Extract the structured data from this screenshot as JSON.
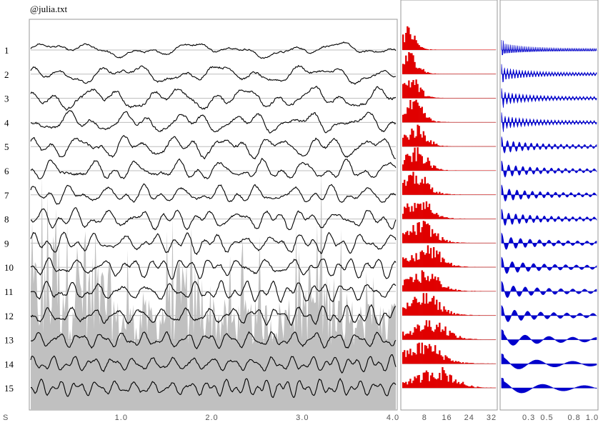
{
  "title": "@julia.txt",
  "chart_data": [
    {
      "type": "line",
      "name": "time-traces",
      "channels": [
        "1",
        "2",
        "3",
        "4",
        "5",
        "6",
        "7",
        "8",
        "9",
        "10",
        "11",
        "12",
        "13",
        "14",
        "15"
      ],
      "x_unit_label": "S",
      "x_ticks": [
        "1.0",
        "2.0",
        "3.0",
        "4.0"
      ],
      "xlim": [
        0,
        4.0
      ],
      "trace_amplitude": [
        0.35,
        0.45,
        0.55,
        0.5,
        0.55,
        0.5,
        0.45,
        0.5,
        0.5,
        0.5,
        0.5,
        0.5,
        0.5,
        0.45,
        0.45
      ]
    },
    {
      "type": "bar",
      "name": "spectra",
      "color": "#e00000",
      "x_ticks": [
        "8",
        "16",
        "24",
        "32"
      ],
      "xlim": [
        0,
        32
      ],
      "peak_bin": [
        2,
        3,
        3,
        4,
        5,
        5,
        5,
        6,
        7,
        9,
        8,
        8,
        10,
        8,
        12
      ]
    },
    {
      "type": "area",
      "name": "autocorrelation",
      "color": "#0000cc",
      "x_ticks": [
        "0.3",
        "0.5",
        "0.8",
        "1.0"
      ],
      "xlim": [
        0,
        1.0
      ],
      "oscillation_periods": [
        3,
        5,
        6,
        6,
        10,
        12,
        13,
        12,
        16,
        18,
        20,
        22,
        40,
        60,
        70
      ]
    }
  ],
  "background_trace_color": "#c0c0c0",
  "trace_color": "#000000"
}
